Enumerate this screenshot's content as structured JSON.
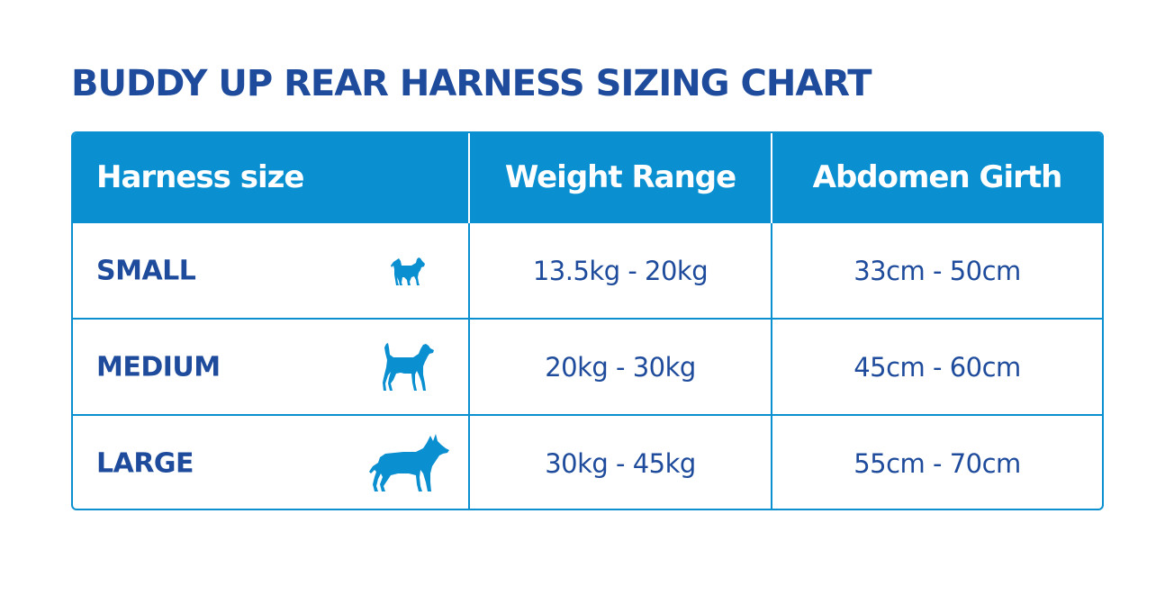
{
  "title": "BUDDY UP REAR HARNESS SIZING CHART",
  "colors": {
    "header_bg": "#0a8fd0",
    "text_dark_blue": "#1e4b9b",
    "icon_blue": "#0a8fd0"
  },
  "table": {
    "headers": [
      "Harness size",
      "Weight Range",
      "Abdomen Girth"
    ],
    "rows": [
      {
        "size": "SMALL",
        "icon": "small-dog-icon",
        "weight": "13.5kg - 20kg",
        "girth": "33cm - 50cm"
      },
      {
        "size": "MEDIUM",
        "icon": "medium-dog-icon",
        "weight": "20kg - 30kg",
        "girth": "45cm - 60cm"
      },
      {
        "size": "LARGE",
        "icon": "large-dog-icon",
        "weight": "30kg - 45kg",
        "girth": "55cm - 70cm"
      }
    ]
  }
}
